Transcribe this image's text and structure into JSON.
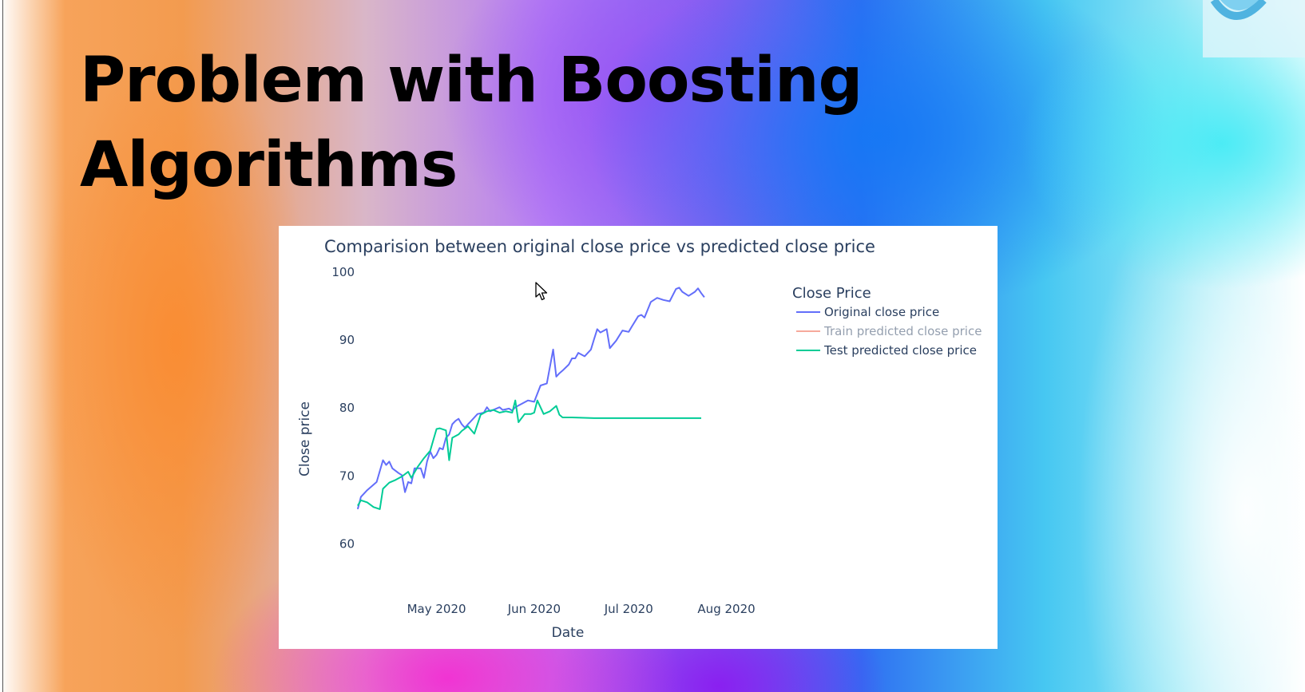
{
  "slide": {
    "title_line1": "Problem with Boosting",
    "title_line2": "Algorithms"
  },
  "colors": {
    "original": "#636efa",
    "train": "#ef553b",
    "test": "#00cc96"
  },
  "chart_data": {
    "type": "line",
    "title": "Comparision between original close price vs predicted close price",
    "xlabel": "Date",
    "ylabel": "Close price",
    "x_ticks": [
      "2020-05-01",
      "2020-06-01",
      "2020-07-01",
      "2020-08-01"
    ],
    "x_tick_labels": [
      "May 2020",
      "Jun 2020",
      "Jul 2020",
      "Aug 2020"
    ],
    "xlim": [
      "2020-04-05",
      "2020-08-11"
    ],
    "y_ticks": [
      60,
      70,
      80,
      90,
      100
    ],
    "ylim": [
      55,
      102
    ],
    "grid": false,
    "legend_title": "Close Price",
    "legend_position": "right",
    "series": [
      {
        "name": "Original close price",
        "color": "#636efa",
        "x": [
          "2020-04-06",
          "2020-04-07",
          "2020-04-09",
          "2020-04-12",
          "2020-04-14",
          "2020-04-15",
          "2020-04-16",
          "2020-04-17",
          "2020-04-19",
          "2020-04-20",
          "2020-04-21",
          "2020-04-22",
          "2020-04-23",
          "2020-04-24",
          "2020-04-26",
          "2020-04-27",
          "2020-04-28",
          "2020-04-29",
          "2020-04-30",
          "2020-05-01",
          "2020-05-02",
          "2020-05-03",
          "2020-05-04",
          "2020-05-05",
          "2020-05-06",
          "2020-05-07",
          "2020-05-08",
          "2020-05-09",
          "2020-05-10",
          "2020-05-11",
          "2020-05-12",
          "2020-05-14",
          "2020-05-16",
          "2020-05-17",
          "2020-05-18",
          "2020-05-20",
          "2020-05-21",
          "2020-05-22",
          "2020-05-24",
          "2020-05-25",
          "2020-05-26",
          "2020-05-28",
          "2020-05-30",
          "2020-06-01",
          "2020-06-03",
          "2020-06-05",
          "2020-06-07",
          "2020-06-08",
          "2020-06-09",
          "2020-06-10",
          "2020-06-12",
          "2020-06-13",
          "2020-06-14",
          "2020-06-15",
          "2020-06-17",
          "2020-06-19",
          "2020-06-20",
          "2020-06-21",
          "2020-06-22",
          "2020-06-24",
          "2020-06-25",
          "2020-06-27",
          "2020-06-29",
          "2020-07-01",
          "2020-07-02",
          "2020-07-04",
          "2020-07-05",
          "2020-07-06",
          "2020-07-08",
          "2020-07-10",
          "2020-07-12",
          "2020-07-14",
          "2020-07-16",
          "2020-07-17",
          "2020-07-18",
          "2020-07-20",
          "2020-07-22",
          "2020-07-23",
          "2020-07-24",
          "2020-07-25"
        ],
        "y": [
          65,
          66.8,
          67.8,
          69,
          72.2,
          71.5,
          72,
          71,
          70.3,
          70,
          67.5,
          69,
          68.8,
          71,
          71,
          69.6,
          72,
          73.5,
          72.5,
          73,
          74,
          73.8,
          75.5,
          76,
          77.5,
          78,
          78.3,
          77.5,
          77,
          77.5,
          78,
          79,
          79.2,
          80,
          79.4,
          79.8,
          80,
          79.6,
          79.8,
          79.5,
          80,
          80.5,
          81,
          80.8,
          83.2,
          83.5,
          88.5,
          84.5,
          85,
          85.4,
          86.3,
          87.2,
          87.2,
          88,
          87.5,
          88.5,
          90,
          91.5,
          91,
          91.5,
          88.7,
          89.8,
          91.3,
          91.1,
          91.9,
          93.4,
          93.6,
          93.2,
          95.5,
          96.1,
          95.8,
          95.6,
          97.4,
          97.6,
          97,
          96.4,
          97,
          97.5,
          96.8,
          96.2
        ]
      },
      {
        "name": "Train predicted close price",
        "color": "#ef553b",
        "legend_dimmed": true,
        "x": [],
        "y": []
      },
      {
        "name": "Test predicted close price",
        "color": "#00cc96",
        "x": [
          "2020-04-06",
          "2020-04-07",
          "2020-04-09",
          "2020-04-11",
          "2020-04-13",
          "2020-04-14",
          "2020-04-16",
          "2020-04-18",
          "2020-04-20",
          "2020-04-22",
          "2020-04-23",
          "2020-04-25",
          "2020-04-27",
          "2020-04-29",
          "2020-04-30",
          "2020-05-01",
          "2020-05-02",
          "2020-05-04",
          "2020-05-05",
          "2020-05-06",
          "2020-05-08",
          "2020-05-09",
          "2020-05-11",
          "2020-05-13",
          "2020-05-15",
          "2020-05-17",
          "2020-05-19",
          "2020-05-21",
          "2020-05-23",
          "2020-05-25",
          "2020-05-26",
          "2020-05-27",
          "2020-05-29",
          "2020-05-31",
          "2020-06-01",
          "2020-06-02",
          "2020-06-04",
          "2020-06-06",
          "2020-06-08",
          "2020-06-09",
          "2020-06-10",
          "2020-06-13",
          "2020-06-20",
          "2020-07-01",
          "2020-07-10",
          "2020-07-24"
        ],
        "y": [
          65.5,
          66.3,
          66,
          65.3,
          65,
          68,
          68.9,
          69.3,
          69.8,
          70.5,
          69.6,
          71.2,
          72.5,
          73.6,
          75.2,
          76.8,
          76.9,
          76.6,
          72.2,
          75.5,
          76,
          76.5,
          77.2,
          76.1,
          78.9,
          79.4,
          79.6,
          79.2,
          79.4,
          79.2,
          81,
          77.8,
          79,
          79,
          79.2,
          81,
          79,
          79.4,
          80.2,
          78.9,
          78.5,
          78.5,
          78.4,
          78.4,
          78.4,
          78.4
        ]
      }
    ]
  }
}
